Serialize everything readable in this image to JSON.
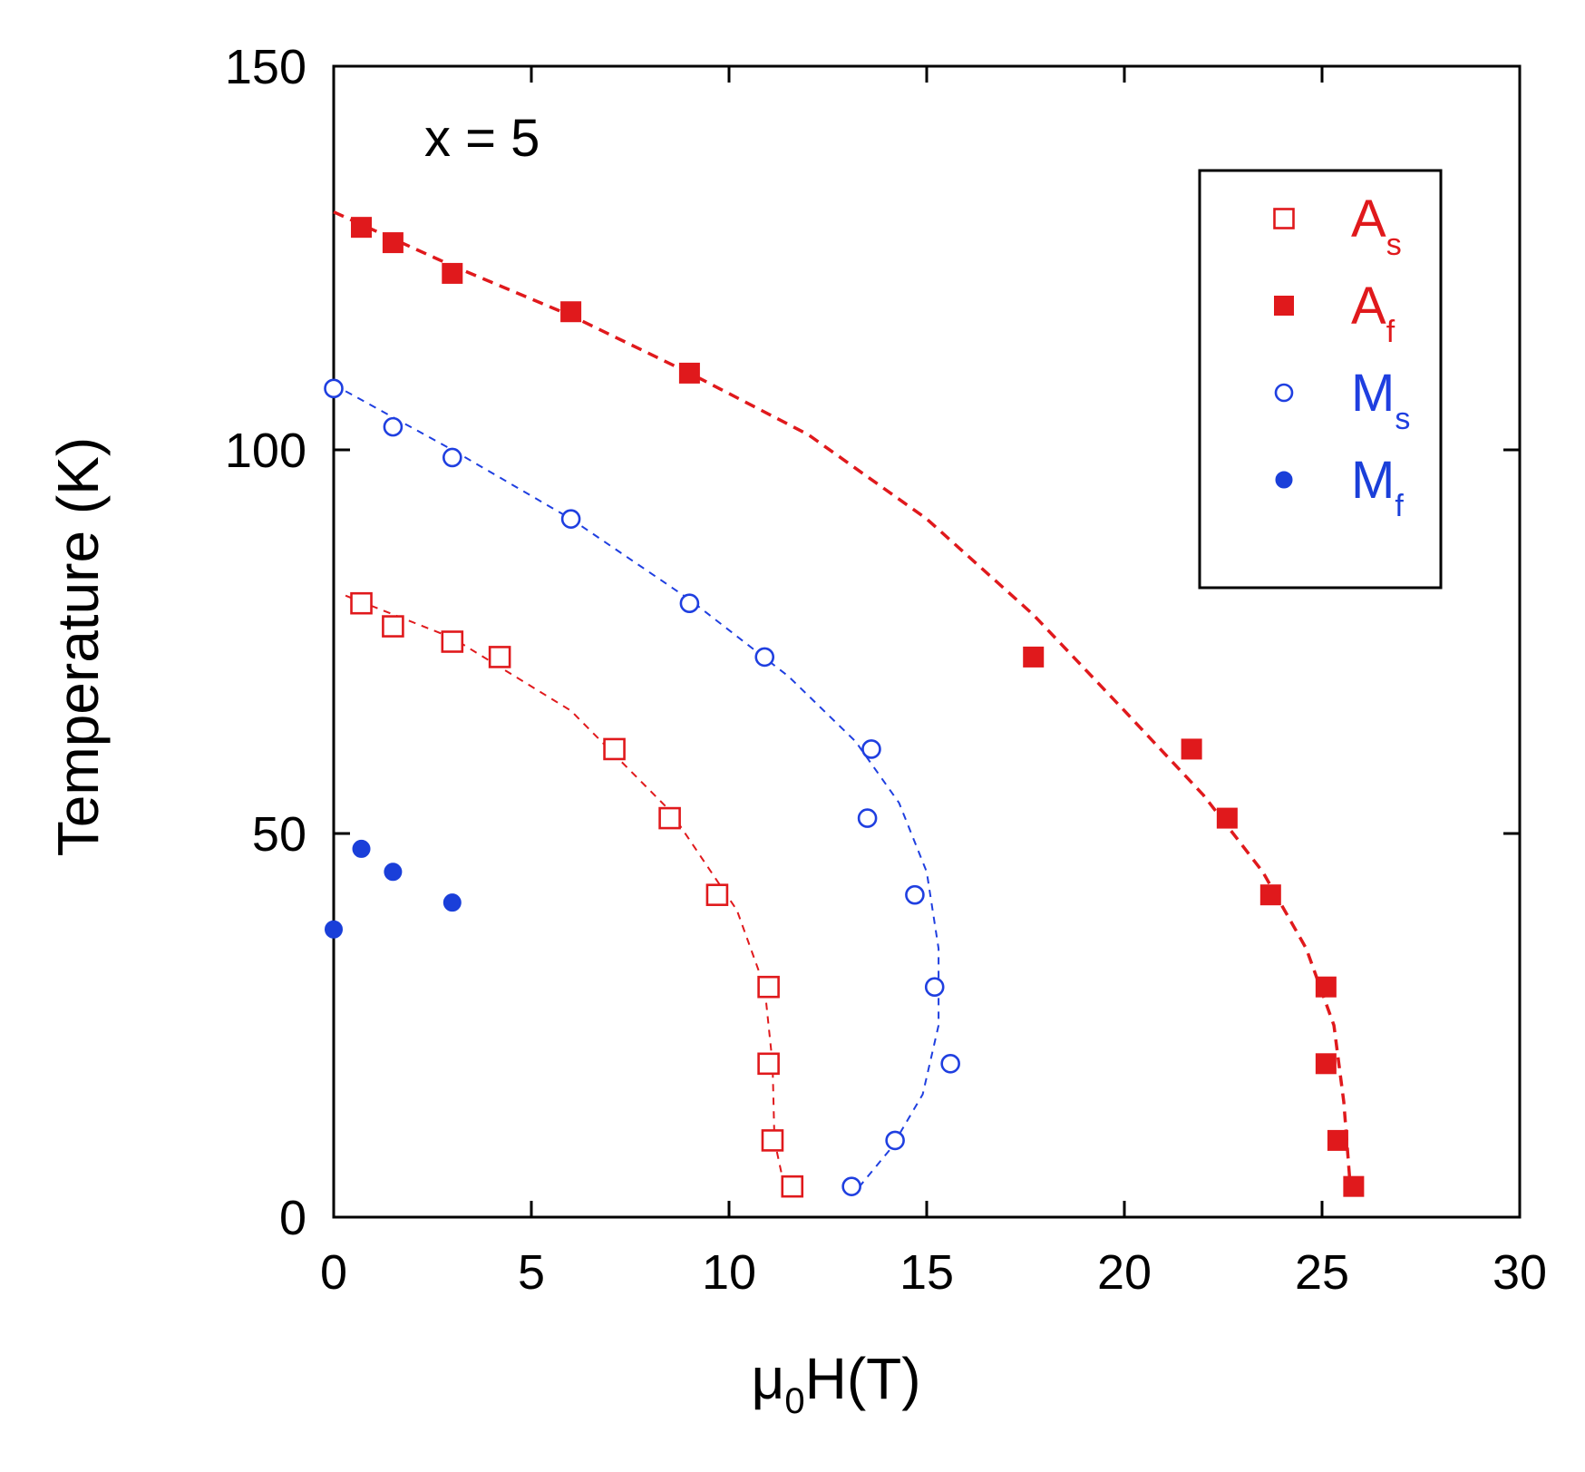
{
  "chart_data": {
    "type": "scatter",
    "title": "",
    "annotation": "x = 5",
    "xlabel": {
      "main": "μ",
      "sub": "0",
      "rest": "H(T)"
    },
    "ylabel": "Temperature (K)",
    "xlim": [
      0,
      30
    ],
    "ylim": [
      0,
      150
    ],
    "xticks": [
      "0",
      "5",
      "10",
      "15",
      "20",
      "25",
      "30"
    ],
    "yticks": [
      "0",
      "50",
      "100",
      "150"
    ],
    "grid": false,
    "legend_position": "top-right",
    "series": [
      {
        "name": "A_s",
        "label_main": "A",
        "label_sub": "s",
        "marker": "open-square",
        "color": "#e0191c",
        "points": [
          [
            0.7,
            80
          ],
          [
            1.5,
            77
          ],
          [
            3,
            75
          ],
          [
            4.2,
            73
          ],
          [
            7.1,
            61
          ],
          [
            8.5,
            52
          ],
          [
            9.7,
            42
          ],
          [
            11,
            30
          ],
          [
            11,
            20
          ],
          [
            11.1,
            10
          ],
          [
            11.6,
            4
          ]
        ],
        "fit": [
          [
            0.3,
            81
          ],
          [
            3,
            75.5
          ],
          [
            6,
            66
          ],
          [
            8.5,
            53
          ],
          [
            10.2,
            40
          ],
          [
            10.9,
            30
          ],
          [
            11.1,
            20
          ],
          [
            11.15,
            10
          ],
          [
            11.4,
            4
          ]
        ]
      },
      {
        "name": "A_f",
        "label_main": "A",
        "label_sub": "f",
        "marker": "filled-square",
        "color": "#e0191c",
        "points": [
          [
            0.7,
            129
          ],
          [
            1.5,
            127
          ],
          [
            3,
            123
          ],
          [
            6,
            118
          ],
          [
            9,
            110
          ],
          [
            17.7,
            73
          ],
          [
            21.7,
            61
          ],
          [
            22.6,
            52
          ],
          [
            23.7,
            42
          ],
          [
            25.1,
            30
          ],
          [
            25.1,
            20
          ],
          [
            25.4,
            10
          ],
          [
            25.8,
            4
          ]
        ],
        "fit": [
          [
            0,
            131
          ],
          [
            3,
            124
          ],
          [
            6,
            117.5
          ],
          [
            9,
            110
          ],
          [
            12,
            102
          ],
          [
            15,
            91
          ],
          [
            17.7,
            78.5
          ],
          [
            20,
            66
          ],
          [
            22,
            55
          ],
          [
            23.5,
            45
          ],
          [
            24.6,
            35
          ],
          [
            25.3,
            25
          ],
          [
            25.55,
            15
          ],
          [
            25.7,
            5
          ]
        ]
      },
      {
        "name": "M_s",
        "label_main": "M",
        "label_sub": "s",
        "marker": "open-circle",
        "color": "#1f3fe0",
        "points": [
          [
            0,
            108
          ],
          [
            1.5,
            103
          ],
          [
            3,
            99
          ],
          [
            6,
            91
          ],
          [
            9,
            80
          ],
          [
            10.9,
            73
          ],
          [
            13.6,
            61
          ],
          [
            13.5,
            52
          ],
          [
            14.7,
            42
          ],
          [
            15.2,
            30
          ],
          [
            15.6,
            20
          ],
          [
            14.2,
            10
          ],
          [
            13.1,
            4
          ]
        ],
        "fit": [
          [
            0,
            108.5
          ],
          [
            3,
            100
          ],
          [
            6,
            91
          ],
          [
            9,
            80.5
          ],
          [
            11.5,
            70.5
          ],
          [
            13.2,
            62
          ],
          [
            14.3,
            54
          ],
          [
            15,
            45
          ],
          [
            15.3,
            35
          ],
          [
            15.3,
            25
          ],
          [
            14.9,
            16
          ],
          [
            14.1,
            9
          ],
          [
            13.3,
            4
          ]
        ]
      },
      {
        "name": "M_f",
        "label_main": "M",
        "label_sub": "f",
        "marker": "filled-circle",
        "color": "#1a3fd9",
        "points": [
          [
            0,
            37.5
          ],
          [
            0.7,
            48
          ],
          [
            1.5,
            45
          ],
          [
            3,
            41
          ]
        ]
      }
    ]
  }
}
